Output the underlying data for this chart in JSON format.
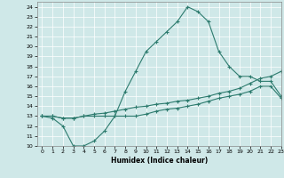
{
  "xlabel": "Humidex (Indice chaleur)",
  "xlim": [
    -0.5,
    23
  ],
  "ylim": [
    10,
    24.5
  ],
  "xticks": [
    0,
    1,
    2,
    3,
    4,
    5,
    6,
    7,
    8,
    9,
    10,
    11,
    12,
    13,
    14,
    15,
    16,
    17,
    18,
    19,
    20,
    21,
    22,
    23
  ],
  "yticks": [
    10,
    11,
    12,
    13,
    14,
    15,
    16,
    17,
    18,
    19,
    20,
    21,
    22,
    23,
    24
  ],
  "bg_color": "#cfe8e8",
  "line_color": "#2d7b6e",
  "grid_color": "#ffffff",
  "line1_x": [
    0,
    1,
    2,
    3,
    4,
    5,
    6,
    7,
    8,
    9,
    10,
    11,
    12,
    13,
    14,
    15,
    16,
    17,
    18,
    19,
    20,
    21,
    22,
    23
  ],
  "line1_y": [
    13,
    12.8,
    12,
    10,
    10,
    10.5,
    11.5,
    13,
    15.5,
    17.5,
    19.5,
    20.5,
    21.5,
    22.5,
    24,
    23.5,
    22.5,
    19.5,
    18,
    17,
    17,
    16.5,
    16.5,
    15
  ],
  "line2_x": [
    0,
    1,
    2,
    3,
    4,
    5,
    6,
    7,
    8,
    9,
    10,
    11,
    12,
    13,
    14,
    15,
    16,
    17,
    18,
    19,
    20,
    21,
    22,
    23
  ],
  "line2_y": [
    13,
    13,
    12.8,
    12.8,
    13,
    13.2,
    13.3,
    13.5,
    13.7,
    13.9,
    14.0,
    14.2,
    14.3,
    14.5,
    14.6,
    14.8,
    15.0,
    15.3,
    15.5,
    15.8,
    16.3,
    16.8,
    17.0,
    17.5
  ],
  "line3_x": [
    0,
    1,
    2,
    3,
    4,
    5,
    6,
    7,
    8,
    9,
    10,
    11,
    12,
    13,
    14,
    15,
    16,
    17,
    18,
    19,
    20,
    21,
    22,
    23
  ],
  "line3_y": [
    13,
    13,
    12.8,
    12.8,
    13,
    13,
    13,
    13,
    13,
    13,
    13.2,
    13.5,
    13.7,
    13.8,
    14.0,
    14.2,
    14.5,
    14.8,
    15.0,
    15.2,
    15.5,
    16.0,
    16.0,
    14.8
  ]
}
